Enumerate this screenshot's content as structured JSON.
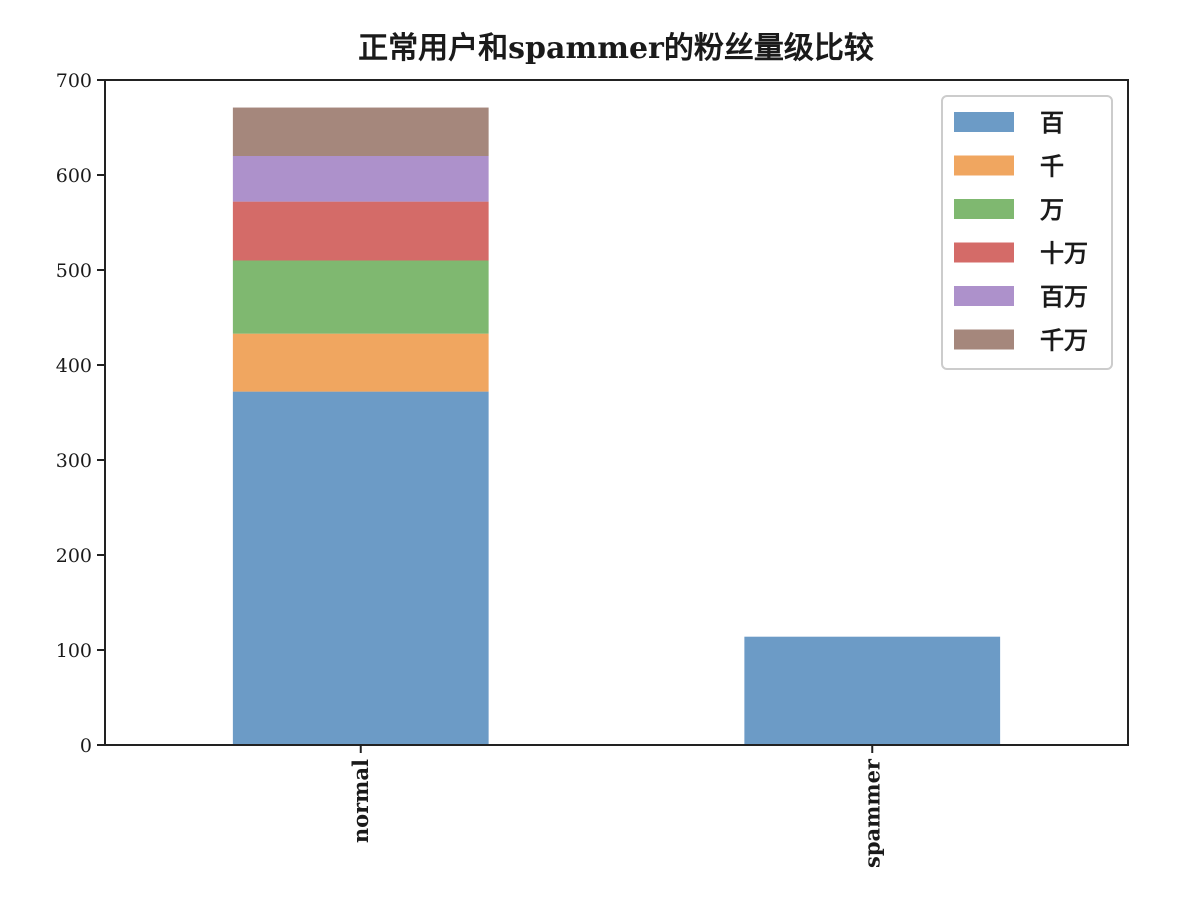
{
  "chart_data": {
    "type": "bar",
    "stacked": true,
    "title": "正常用户和spammer的粉丝量级比较",
    "xlabel": "",
    "ylabel": "",
    "categories": [
      "normal",
      "spammer"
    ],
    "series": [
      {
        "name": "百",
        "values": [
          372,
          114
        ],
        "color": "#6c9bc6"
      },
      {
        "name": "千",
        "values": [
          61,
          0
        ],
        "color": "#f0a660"
      },
      {
        "name": "万",
        "values": [
          77,
          0
        ],
        "color": "#7fb870"
      },
      {
        "name": "十万",
        "values": [
          62,
          0
        ],
        "color": "#d46b68"
      },
      {
        "name": "百万",
        "values": [
          48,
          0
        ],
        "color": "#ad91cb"
      },
      {
        "name": "千万",
        "values": [
          51,
          0
        ],
        "color": "#a5877c"
      }
    ],
    "ylim": [
      0,
      700
    ],
    "yticks": [
      0,
      100,
      200,
      300,
      400,
      500,
      600,
      700
    ],
    "grid": false,
    "legend_position": "top-right",
    "xtick_rotation": "vertical"
  }
}
